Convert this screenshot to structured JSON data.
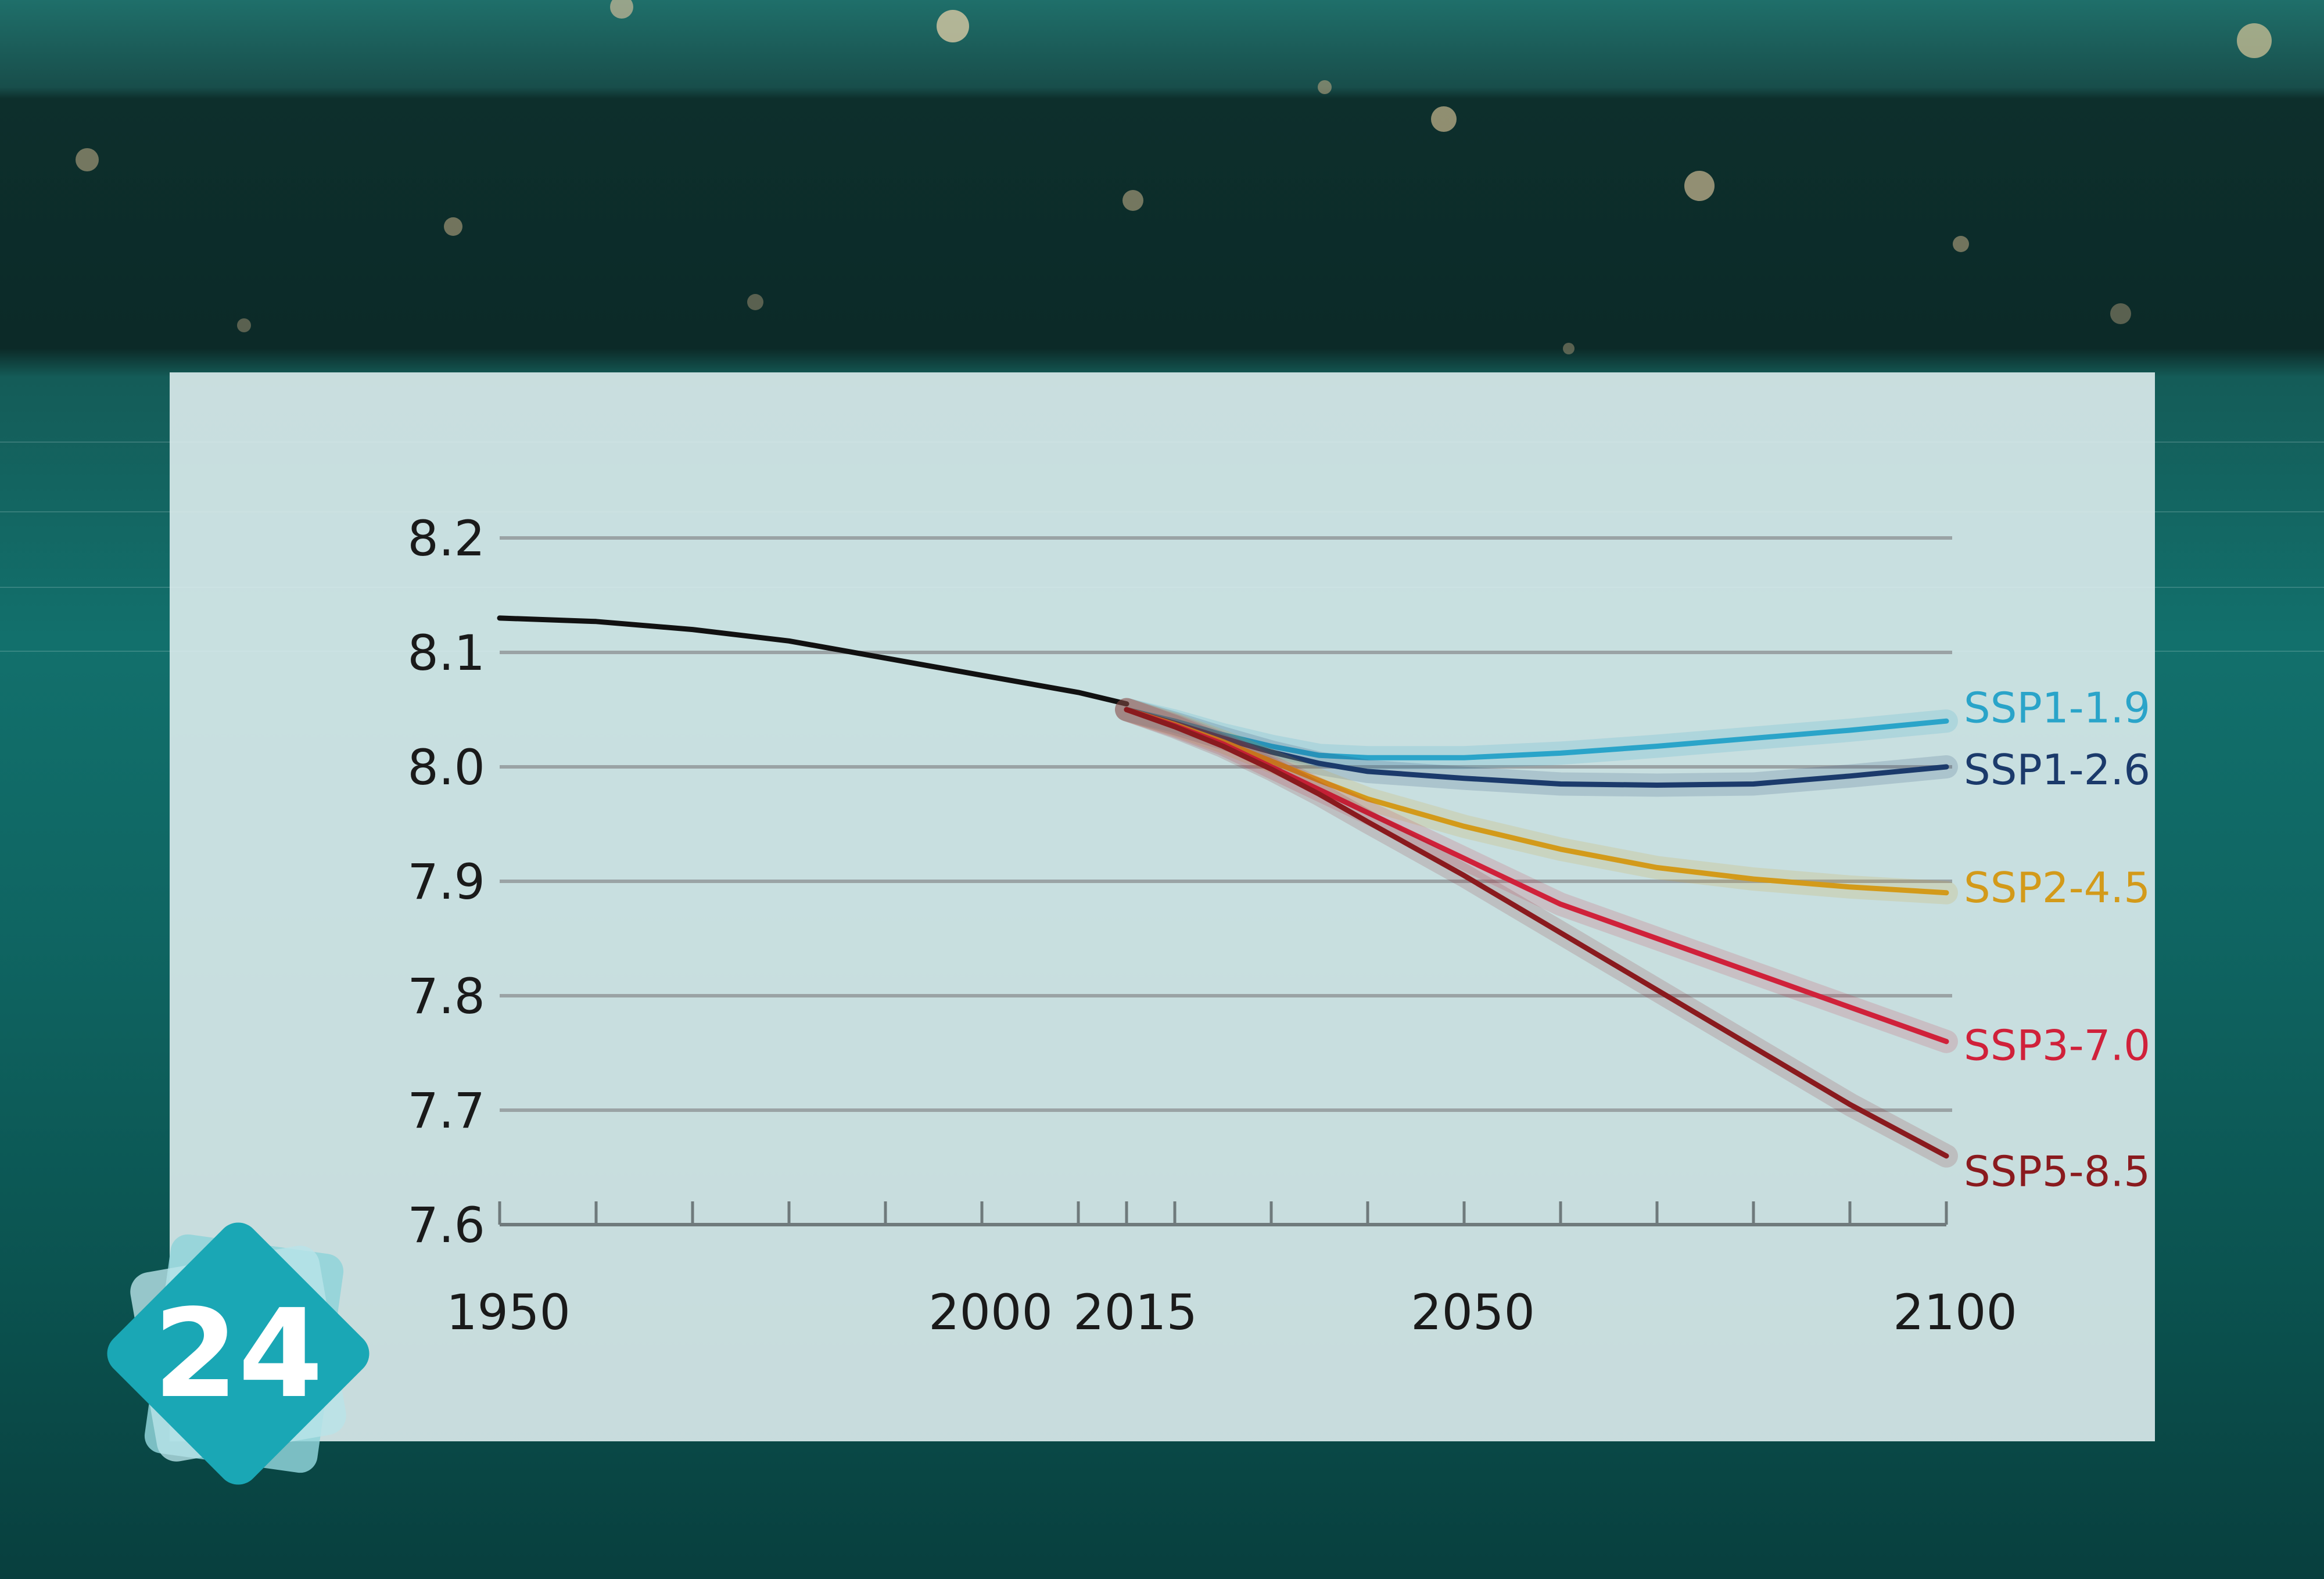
{
  "badge": {
    "number": "24",
    "color": "#1aa7b5"
  },
  "chart_data": {
    "type": "line",
    "title": "",
    "xlabel": "",
    "ylabel": "",
    "xlim": [
      1950,
      2100
    ],
    "ylim": [
      7.6,
      8.2
    ],
    "grid": true,
    "x_ticks": [
      1950,
      2000,
      2015,
      2050,
      2100
    ],
    "x_tick_labels": [
      "1950",
      "2000",
      "2015",
      "2050",
      "2100"
    ],
    "y_ticks": [
      7.6,
      7.7,
      7.8,
      7.9,
      8.0,
      8.1,
      8.2
    ],
    "y_tick_labels": [
      "7.6",
      "7.7",
      "7.8",
      "7.9",
      "8.0",
      "8.1",
      "8.2"
    ],
    "legend": "inline-right",
    "series": [
      {
        "name": "",
        "color": "#111111",
        "x": [
          1950,
          1960,
          1970,
          1980,
          1990,
          2000,
          2010,
          2015
        ],
        "y": [
          8.13,
          8.127,
          8.12,
          8.11,
          8.095,
          8.08,
          8.065,
          8.055
        ]
      },
      {
        "name": "SSP1-1.9",
        "color": "#2aa4c9",
        "x": [
          2015,
          2020,
          2025,
          2030,
          2035,
          2040,
          2050,
          2060,
          2070,
          2080,
          2090,
          2100
        ],
        "y": [
          8.05,
          8.04,
          8.028,
          8.018,
          8.01,
          8.008,
          8.008,
          8.012,
          8.018,
          8.025,
          8.032,
          8.04
        ]
      },
      {
        "name": "SSP1-2.6",
        "color": "#1b3a6b",
        "x": [
          2015,
          2020,
          2025,
          2030,
          2035,
          2040,
          2050,
          2060,
          2070,
          2080,
          2090,
          2100
        ],
        "y": [
          8.05,
          8.038,
          8.025,
          8.013,
          8.003,
          7.996,
          7.99,
          7.985,
          7.984,
          7.985,
          7.992,
          8.0
        ]
      },
      {
        "name": "SSP2-4.5",
        "color": "#d39a1a",
        "x": [
          2015,
          2020,
          2025,
          2030,
          2035,
          2040,
          2050,
          2060,
          2070,
          2080,
          2090,
          2100
        ],
        "y": [
          8.05,
          8.037,
          8.022,
          8.005,
          7.988,
          7.972,
          7.948,
          7.928,
          7.912,
          7.902,
          7.895,
          7.89
        ]
      },
      {
        "name": "SSP3-7.0",
        "color": "#d0213a",
        "x": [
          2015,
          2020,
          2025,
          2030,
          2035,
          2040,
          2050,
          2060,
          2070,
          2080,
          2090,
          2100
        ],
        "y": [
          8.05,
          8.036,
          8.02,
          8.0,
          7.98,
          7.96,
          7.92,
          7.88,
          7.85,
          7.82,
          7.79,
          7.76
        ]
      },
      {
        "name": "SSP5-8.5",
        "color": "#8a1a1e",
        "x": [
          2015,
          2020,
          2025,
          2030,
          2035,
          2040,
          2050,
          2060,
          2070,
          2080,
          2090,
          2100
        ],
        "y": [
          8.05,
          8.035,
          8.018,
          7.998,
          7.976,
          7.952,
          7.905,
          7.855,
          7.805,
          7.755,
          7.705,
          7.66
        ]
      }
    ]
  }
}
